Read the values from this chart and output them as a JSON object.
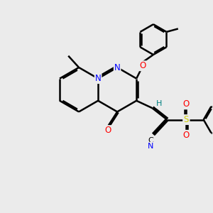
{
  "bg_color": "#ebebeb",
  "bond_color": "#000000",
  "bond_width": 1.8,
  "atom_colors": {
    "N": "#0000ff",
    "O": "#ff0000",
    "S": "#cccc00",
    "H": "#008080",
    "C": "#000000"
  },
  "fig_width": 3.0,
  "fig_height": 3.0,
  "dpi": 100,
  "xlim": [
    0,
    10
  ],
  "ylim": [
    0,
    10
  ]
}
